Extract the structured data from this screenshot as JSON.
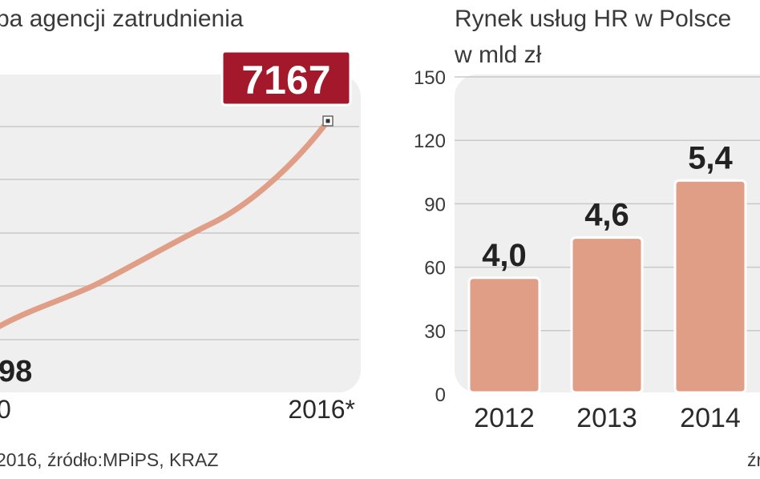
{
  "left_chart": {
    "title": "ba agencji zatrudnienia",
    "footnote": "2016, źródło:MPiPS, KRAZ",
    "line_color": "#e19e87",
    "highlight_color": "#a3182a",
    "plot_bg": "#efefef",
    "chart_data": {
      "type": "line",
      "x_labels": [
        "0",
        "2016*"
      ],
      "series": [
        {
          "values": [
            98,
            7167
          ]
        }
      ],
      "start_label": "98",
      "end_label": "7167"
    }
  },
  "right_chart": {
    "title": "Rynek usług  HR w Polsce",
    "subtitle": "w mld zł",
    "bar_color": "#e19e87",
    "plot_bg": "#efefef",
    "footnote": "źr",
    "chart_data": {
      "type": "bar",
      "categories": [
        "2012",
        "2013",
        "2014"
      ],
      "values": [
        4.0,
        4.6,
        5.4
      ],
      "value_labels": [
        "4,0",
        "4,6",
        "5,4"
      ],
      "y_ticks": [
        "0",
        "30",
        "60",
        "90",
        "120",
        "150"
      ],
      "ylim": [
        0,
        150
      ],
      "grid": true
    }
  }
}
